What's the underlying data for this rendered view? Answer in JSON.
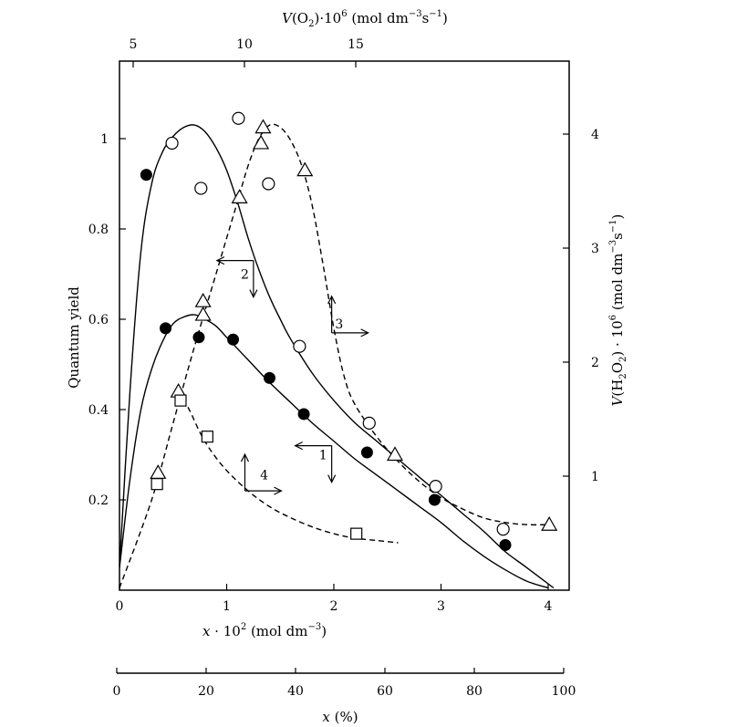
{
  "chart_data": {
    "type": "scatter",
    "title": "",
    "axes": {
      "bottom": {
        "label_prefix": "x · 10",
        "label_exp": "2",
        "label_suffix": " (mol dm",
        "label_exp2": "−3",
        "label_end": ")",
        "range": [
          0,
          4.15
        ],
        "ticks": [
          0,
          1,
          2,
          3,
          4
        ],
        "tick_labels": [
          "0",
          "1",
          "2",
          "3",
          "4"
        ]
      },
      "top": {
        "label_v": "V",
        "label_species": "(O",
        "label_sub": "2",
        "label_mid": ")·10",
        "label_exp": "6",
        "label_unit": " (mol dm",
        "label_unit_exp": "−3",
        "label_unit2": "s",
        "label_unit_exp2": "−1",
        "label_end": ")",
        "ticks": [
          5,
          10,
          15
        ],
        "tick_labels": [
          "5",
          "10",
          "15"
        ]
      },
      "left": {
        "label": "Quantum yield",
        "range": [
          0,
          1.2
        ],
        "ticks": [
          0.2,
          0.4,
          0.6,
          0.8,
          1.0
        ],
        "tick_labels": [
          "0.2",
          "0.4",
          "0.6",
          "0.8",
          "1"
        ]
      },
      "right": {
        "label_v": "V",
        "label_species": "(H",
        "label_sub1": "2",
        "label_o": "O",
        "label_sub2": "2",
        "label_mid": ") · 10",
        "label_exp": "6",
        "label_unit": "(mol dm",
        "label_unit_exp": "−3",
        "label_unit2": "s",
        "label_unit_exp2": "−1",
        "label_end": ")",
        "ticks": [
          1,
          2,
          3,
          4
        ],
        "tick_labels": [
          "1",
          "2",
          "3",
          "4"
        ]
      },
      "percent": {
        "label_var": "x",
        "label_unit": " (%)",
        "range": [
          0,
          100
        ],
        "ticks": [
          0,
          20,
          40,
          60,
          80,
          100
        ],
        "tick_labels": [
          "0",
          "20",
          "40",
          "60",
          "80",
          "100"
        ]
      }
    },
    "curve_labels": [
      {
        "text": "1",
        "x": 1.9,
        "y": 0.29
      },
      {
        "text": "2",
        "x": 1.17,
        "y": 0.69
      },
      {
        "text": "3",
        "x": 2.05,
        "y": 0.58
      },
      {
        "text": "4",
        "x": 1.35,
        "y": 0.245
      }
    ],
    "series": [
      {
        "marker": "filled-circle",
        "points": [
          [
            0.25,
            0.92
          ],
          [
            0.43,
            0.58
          ],
          [
            0.74,
            0.56
          ],
          [
            1.06,
            0.555
          ],
          [
            1.4,
            0.47
          ],
          [
            1.72,
            0.39
          ],
          [
            2.31,
            0.305
          ],
          [
            2.94,
            0.2
          ],
          [
            3.6,
            0.1
          ]
        ]
      },
      {
        "marker": "open-circle",
        "points": [
          [
            0.49,
            0.99
          ],
          [
            0.76,
            0.89
          ],
          [
            1.11,
            1.045
          ],
          [
            1.39,
            0.9
          ],
          [
            1.68,
            0.54
          ],
          [
            2.33,
            0.37
          ],
          [
            2.95,
            0.23
          ],
          [
            3.58,
            0.135
          ]
        ]
      },
      {
        "marker": "open-triangle",
        "points": [
          [
            0.36,
            0.26
          ],
          [
            0.55,
            0.44
          ],
          [
            0.78,
            0.64
          ],
          [
            0.78,
            0.61
          ],
          [
            1.12,
            0.87
          ],
          [
            1.32,
            0.99
          ],
          [
            1.34,
            1.025
          ],
          [
            1.73,
            0.93
          ],
          [
            2.57,
            0.3
          ],
          [
            4.01,
            0.145
          ]
        ]
      },
      {
        "marker": "open-square",
        "points": [
          [
            0.35,
            0.235
          ],
          [
            0.57,
            0.42
          ],
          [
            0.82,
            0.34
          ],
          [
            2.21,
            0.125
          ]
        ]
      }
    ],
    "curves": [
      {
        "style": "solid",
        "points": [
          [
            0,
            0.05
          ],
          [
            0.1,
            0.45
          ],
          [
            0.2,
            0.75
          ],
          [
            0.3,
            0.9
          ],
          [
            0.4,
            0.97
          ],
          [
            0.5,
            1.005
          ],
          [
            0.6,
            1.025
          ],
          [
            0.7,
            1.03
          ],
          [
            0.8,
            1.015
          ],
          [
            0.9,
            0.98
          ],
          [
            1.0,
            0.93
          ],
          [
            1.1,
            0.86
          ],
          [
            1.2,
            0.78
          ],
          [
            1.3,
            0.71
          ],
          [
            1.4,
            0.65
          ],
          [
            1.5,
            0.6
          ],
          [
            1.6,
            0.555
          ],
          [
            1.8,
            0.48
          ],
          [
            2.0,
            0.42
          ],
          [
            2.2,
            0.37
          ],
          [
            2.4,
            0.33
          ],
          [
            2.6,
            0.29
          ],
          [
            2.8,
            0.25
          ],
          [
            3.0,
            0.21
          ],
          [
            3.2,
            0.17
          ],
          [
            3.4,
            0.13
          ],
          [
            3.6,
            0.085
          ],
          [
            3.8,
            0.05
          ],
          [
            4.05,
            0.005
          ]
        ]
      },
      {
        "style": "solid",
        "points": [
          [
            0,
            0.05
          ],
          [
            0.1,
            0.25
          ],
          [
            0.2,
            0.4
          ],
          [
            0.3,
            0.49
          ],
          [
            0.4,
            0.55
          ],
          [
            0.5,
            0.59
          ],
          [
            0.6,
            0.605
          ],
          [
            0.7,
            0.61
          ],
          [
            0.8,
            0.6
          ],
          [
            0.9,
            0.585
          ],
          [
            1.0,
            0.56
          ],
          [
            1.2,
            0.51
          ],
          [
            1.4,
            0.46
          ],
          [
            1.6,
            0.415
          ],
          [
            1.8,
            0.37
          ],
          [
            2.0,
            0.33
          ],
          [
            2.2,
            0.29
          ],
          [
            2.4,
            0.255
          ],
          [
            2.6,
            0.22
          ],
          [
            2.8,
            0.185
          ],
          [
            3.0,
            0.15
          ],
          [
            3.2,
            0.11
          ],
          [
            3.4,
            0.075
          ],
          [
            3.6,
            0.045
          ],
          [
            3.8,
            0.02
          ],
          [
            4.0,
            0.005
          ]
        ]
      },
      {
        "style": "dashed",
        "points": [
          [
            0,
            0.005
          ],
          [
            0.3,
            0.2
          ],
          [
            0.5,
            0.37
          ],
          [
            0.7,
            0.54
          ],
          [
            0.9,
            0.7
          ],
          [
            1.1,
            0.86
          ],
          [
            1.2,
            0.94
          ],
          [
            1.3,
            1.0
          ],
          [
            1.4,
            1.03
          ],
          [
            1.5,
            1.025
          ],
          [
            1.6,
            0.995
          ],
          [
            1.7,
            0.94
          ],
          [
            1.8,
            0.85
          ],
          [
            1.9,
            0.72
          ],
          [
            2.0,
            0.58
          ],
          [
            2.1,
            0.47
          ],
          [
            2.2,
            0.41
          ],
          [
            2.4,
            0.34
          ],
          [
            2.6,
            0.285
          ],
          [
            2.8,
            0.24
          ],
          [
            3.0,
            0.205
          ],
          [
            3.2,
            0.18
          ],
          [
            3.4,
            0.16
          ],
          [
            3.6,
            0.15
          ],
          [
            3.8,
            0.145
          ],
          [
            4.01,
            0.145
          ]
        ]
      },
      {
        "style": "dashed",
        "points": [
          [
            0.55,
            0.44
          ],
          [
            0.65,
            0.4
          ],
          [
            0.75,
            0.35
          ],
          [
            0.85,
            0.31
          ],
          [
            1.0,
            0.265
          ],
          [
            1.2,
            0.22
          ],
          [
            1.4,
            0.185
          ],
          [
            1.6,
            0.16
          ],
          [
            1.8,
            0.14
          ],
          [
            2.0,
            0.125
          ],
          [
            2.2,
            0.115
          ],
          [
            2.4,
            0.11
          ],
          [
            2.6,
            0.105
          ]
        ]
      }
    ],
    "direction_arrows": [
      {
        "x": 1.98,
        "y": 0.32,
        "dir": "left"
      },
      {
        "x": 1.98,
        "y": 0.32,
        "dir": "down"
      },
      {
        "x": 1.25,
        "y": 0.73,
        "dir": "left"
      },
      {
        "x": 1.25,
        "y": 0.73,
        "dir": "down"
      },
      {
        "x": 1.98,
        "y": 0.57,
        "dir": "up"
      },
      {
        "x": 1.98,
        "y": 0.57,
        "dir": "right"
      },
      {
        "x": 1.17,
        "y": 0.22,
        "dir": "up"
      },
      {
        "x": 1.17,
        "y": 0.22,
        "dir": "right"
      }
    ]
  }
}
